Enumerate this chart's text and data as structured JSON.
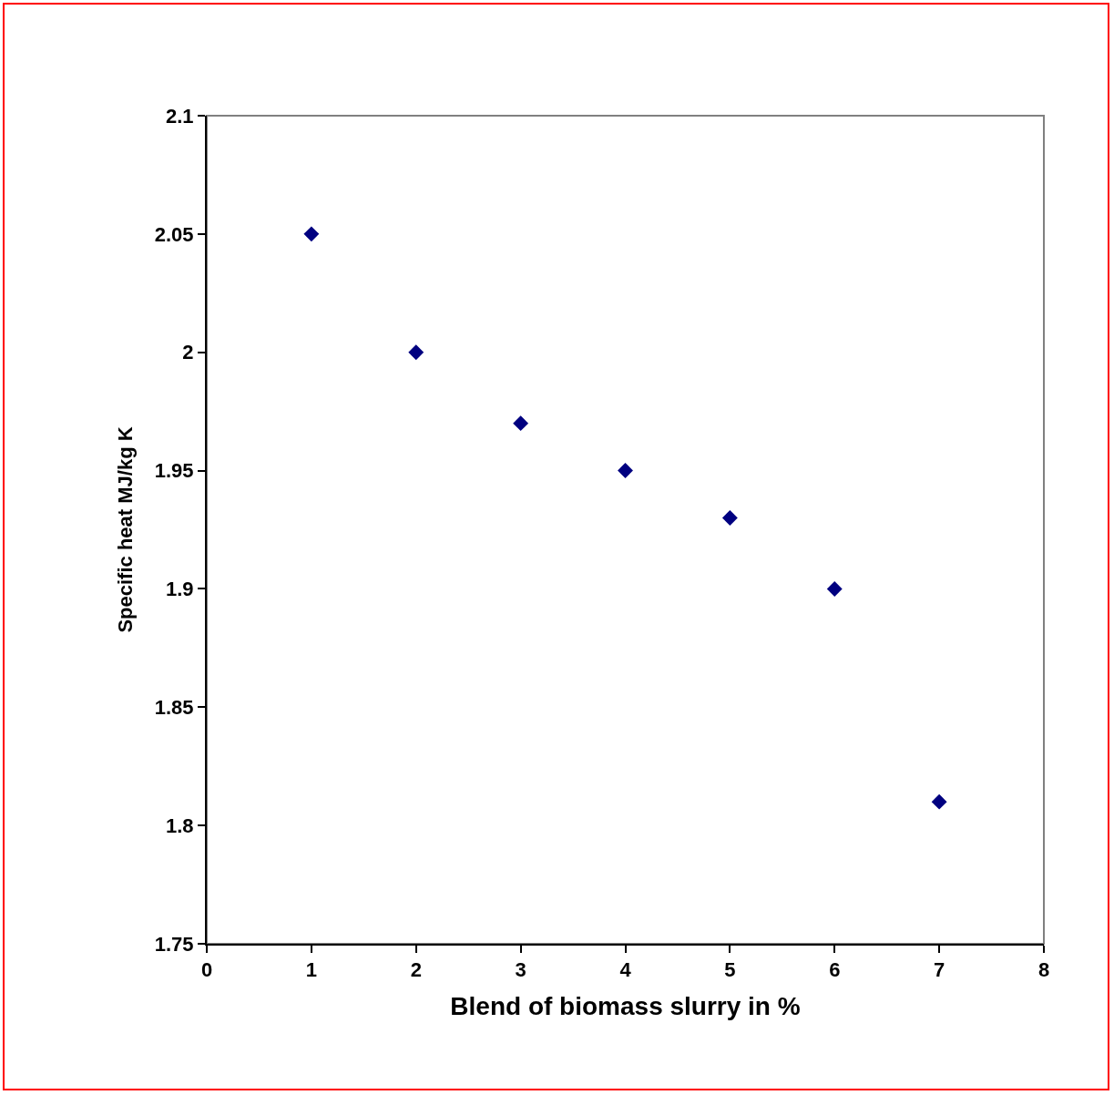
{
  "chart_data": {
    "type": "scatter",
    "xlabel": "Blend of biomass slurry in %",
    "ylabel": "Specific heat MJ/kg K",
    "x": [
      1,
      2,
      3,
      4,
      5,
      6,
      7
    ],
    "series": [
      {
        "color": "#000080",
        "values": [
          2.05,
          2.0,
          1.97,
          1.95,
          1.93,
          1.9,
          1.81
        ]
      }
    ],
    "xlim": [
      0,
      8
    ],
    "xticks": [
      0,
      1,
      2,
      3,
      4,
      5,
      6,
      7,
      8
    ],
    "ylim": [
      1.75,
      2.1
    ],
    "yticks": [
      1.75,
      1.8,
      1.85,
      1.9,
      1.95,
      2,
      2.05,
      2.1
    ],
    "marker": "diamond"
  }
}
